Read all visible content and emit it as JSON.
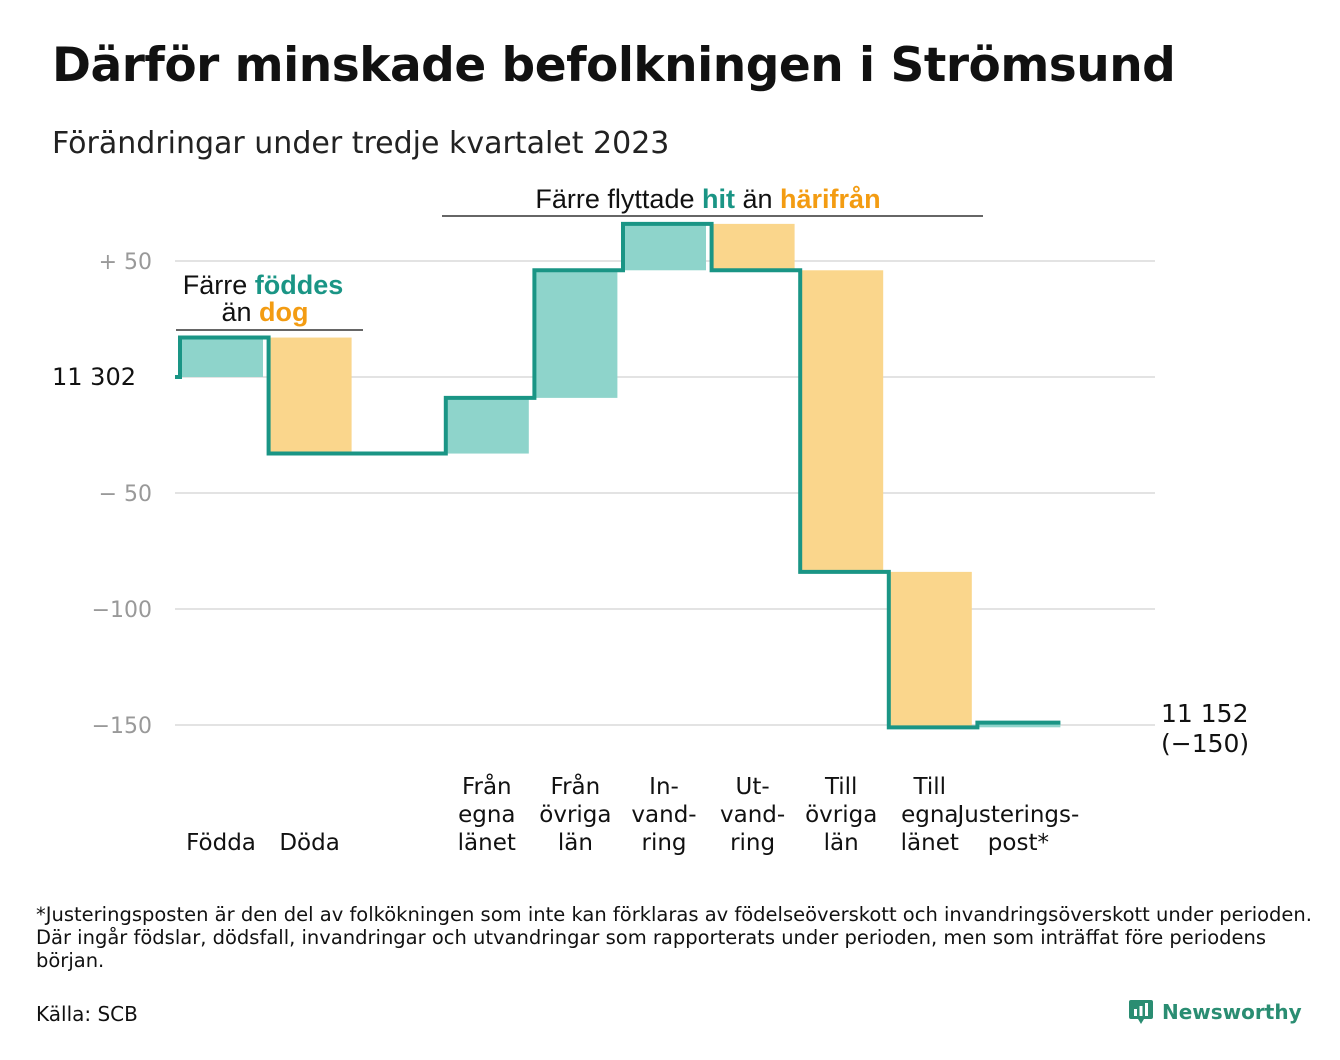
{
  "title": "Därför minskade befolkningen i Strömsund",
  "subtitle": "Förändringar under tredje kvartalet 2023",
  "colors": {
    "increase": "#8ed4cb",
    "decrease": "#fad68c",
    "line": "#1a9585",
    "accent_teal": "#1a9585",
    "accent_orange": "#f39c12",
    "grid": "#e3e3e3",
    "axis_text": "#999999"
  },
  "chart_data": {
    "type": "waterfall",
    "start_value": 11302,
    "start_label": "11  302",
    "end_label": "11 152",
    "end_change_label": "(−150)",
    "yticks": [
      {
        "value": 50,
        "label": "+  50"
      },
      {
        "value": 0,
        "label": ""
      },
      {
        "value": -50,
        "label": "−  50"
      },
      {
        "value": -100,
        "label": "−100"
      },
      {
        "value": -150,
        "label": "−150"
      }
    ],
    "ylim": [
      -155,
      70
    ],
    "categories": [
      {
        "label": [
          "Födda"
        ],
        "value": 17
      },
      {
        "label": [
          "Döda"
        ],
        "value": -50
      },
      {
        "label": [],
        "value": 0
      },
      {
        "label": [
          "Från",
          "egna",
          "länet"
        ],
        "value": 24
      },
      {
        "label": [
          "Från",
          "övriga",
          "län"
        ],
        "value": 55
      },
      {
        "label": [
          "In-",
          "vand-",
          "ring"
        ],
        "value": 20
      },
      {
        "label": [
          "Ut-",
          "vand-",
          "ring"
        ],
        "value": -20
      },
      {
        "label": [
          "Till",
          "övriga",
          "län"
        ],
        "value": -130
      },
      {
        "label": [
          "Till",
          "egna",
          "länet"
        ],
        "value": -67
      },
      {
        "label": [
          "Justerings-",
          "post*"
        ],
        "value": 2
      }
    ],
    "annotations": [
      {
        "parts": [
          {
            "text": "Färre ",
            "style": "plain"
          },
          {
            "text": "föddes",
            "style": "teal"
          }
        ],
        "parts2": [
          {
            "text": "än ",
            "style": "plain"
          },
          {
            "text": "dog",
            "style": "orange"
          }
        ]
      },
      {
        "parts": [
          {
            "text": "Färre flyttade ",
            "style": "plain"
          },
          {
            "text": "hit",
            "style": "teal"
          },
          {
            "text": " än ",
            "style": "plain"
          },
          {
            "text": "härifrån",
            "style": "orange"
          }
        ]
      }
    ]
  },
  "footnote": "*Justeringsposten är den del av folkökningen som inte kan förklaras av födelseöverskott och invandringsöverskott under perioden. Där ingår födslar, dödsfall, invandringar och utvandringar som rapporterats under perioden, men som inträffat före periodens början.",
  "source": "Källa: SCB",
  "brand": "Newsworthy"
}
